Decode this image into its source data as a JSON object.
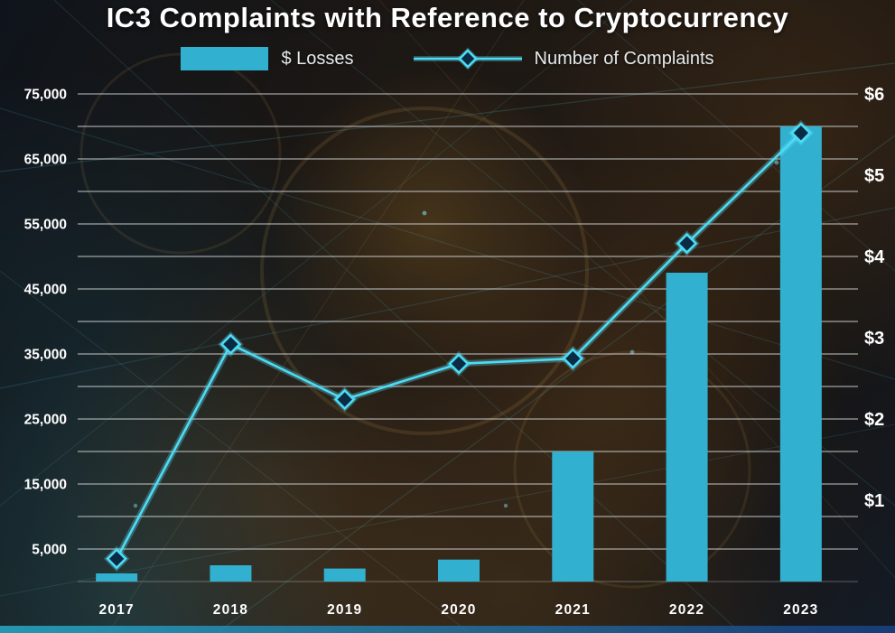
{
  "title": "IC3 Complaints with Reference to Cryptocurrency",
  "legend": {
    "losses_label": "$ Losses",
    "complaints_label": "Number of Complaints"
  },
  "chart_data": {
    "type": "bar",
    "subtype": "combo-bar-line",
    "title": "IC3 Complaints with Reference to Cryptocurrency",
    "categories": [
      "2017",
      "2018",
      "2019",
      "2020",
      "2021",
      "2022",
      "2023"
    ],
    "series": [
      {
        "name": "$ Losses",
        "type": "bar",
        "axis": "right",
        "values": [
          0.1,
          0.2,
          0.16,
          0.27,
          1.6,
          3.8,
          5.6
        ]
      },
      {
        "name": "Number of Complaints",
        "type": "line",
        "axis": "left",
        "values": [
          3500,
          36500,
          28000,
          33500,
          34300,
          52000,
          69000
        ]
      }
    ],
    "left_axis": {
      "ticks": [
        "75,000",
        "65,000",
        "55,000",
        "45,000",
        "35,000",
        "25,000",
        "15,000",
        "5,000"
      ],
      "min": 0,
      "max": 75000,
      "grid_interval": 5000
    },
    "right_axis": {
      "ticks": [
        "$6",
        "$5",
        "$4",
        "$3",
        "$2",
        "$1"
      ],
      "min": 0,
      "max": 6
    },
    "grid": true,
    "legend_position": "top",
    "colors": {
      "bar": "#31b0cf",
      "line": "#4cdcf5",
      "line_glow": "rgba(96,226,248,0.30)",
      "marker_fill": "#0b2a44",
      "grid": "#d0d3d5",
      "text": "#ffffff"
    }
  }
}
